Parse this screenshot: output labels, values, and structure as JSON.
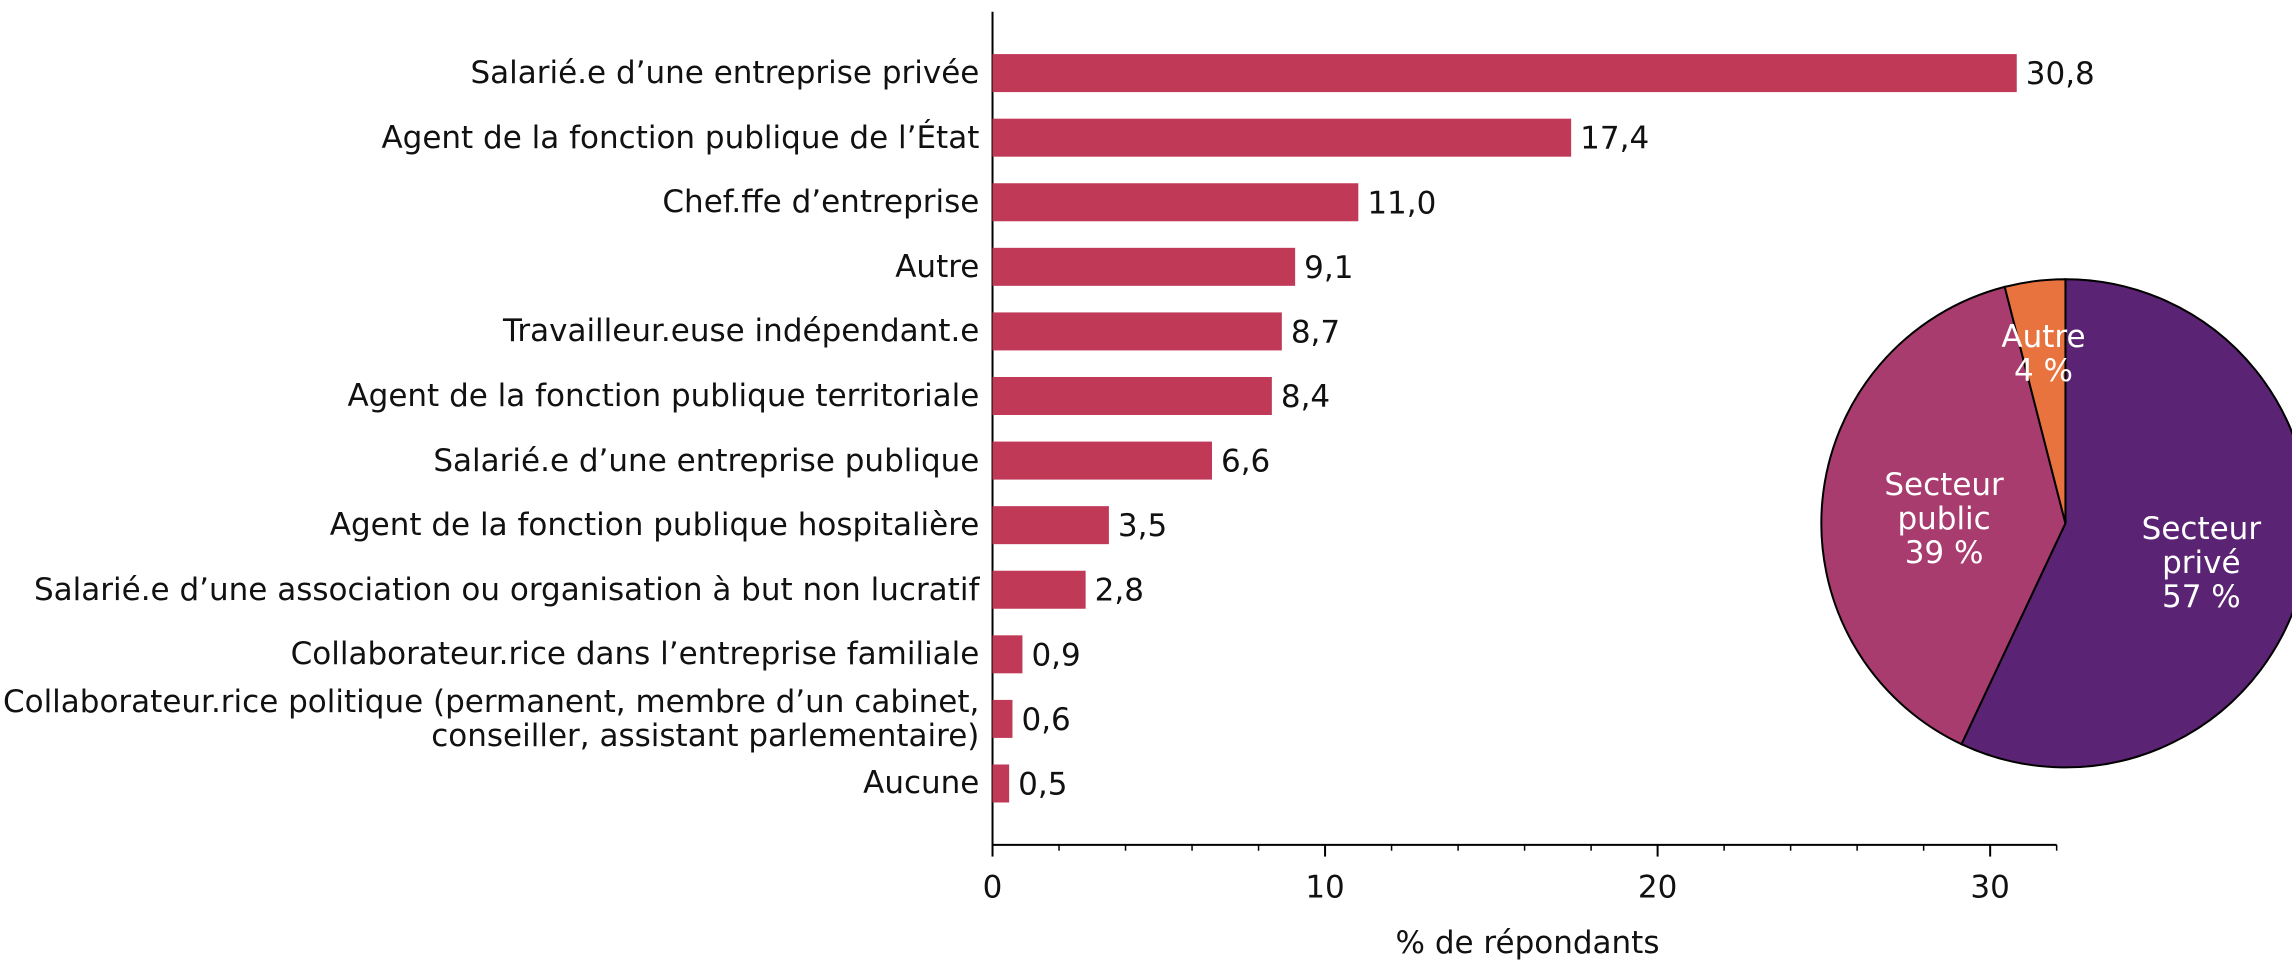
{
  "chart_data": [
    {
      "type": "hbar",
      "categories": [
        "Salarié.e d’une entreprise privée",
        "Agent de la fonction publique de l’État",
        "Chef.ffe d’entreprise",
        "Autre",
        "Travailleur.euse indépendant.e",
        "Agent de la fonction publique territoriale",
        "Salarié.e d’une entreprise publique",
        "Agent de la fonction publique hospitalière",
        "Salarié.e d’une association ou organisation à but non lucratif",
        "Collaborateur.rice dans l’entreprise familiale",
        "Collaborateur.rice politique (permanent, membre d’un cabinet,\nconseiller, assistant parlementaire)",
        "Aucune"
      ],
      "values": [
        30.8,
        17.4,
        11.0,
        9.1,
        8.7,
        8.4,
        6.6,
        3.5,
        2.8,
        0.9,
        0.6,
        0.5
      ],
      "value_labels": [
        "30,8",
        "17,4",
        "11,0",
        "9,1",
        "8,7",
        "8,4",
        "6,6",
        "3,5",
        "2,8",
        "0,9",
        "0,6",
        "0,5"
      ],
      "color": "#c03a58",
      "xlabel": "% de répondants",
      "xlim": [
        0,
        32
      ],
      "xticks": [
        0,
        10,
        20,
        30
      ],
      "xticks_minor": [
        2,
        4,
        6,
        8,
        12,
        14,
        16,
        18,
        22,
        24,
        26,
        28,
        32
      ]
    },
    {
      "type": "pie",
      "categories": [
        "Secteur\nprivé",
        "Secteur\npublic",
        "Autre"
      ],
      "values": [
        57,
        39,
        4
      ],
      "value_labels": [
        "57 %",
        "39 %",
        "4 %"
      ],
      "colors": [
        "#5b2373",
        "#a83c6e",
        "#e8733f"
      ]
    }
  ]
}
